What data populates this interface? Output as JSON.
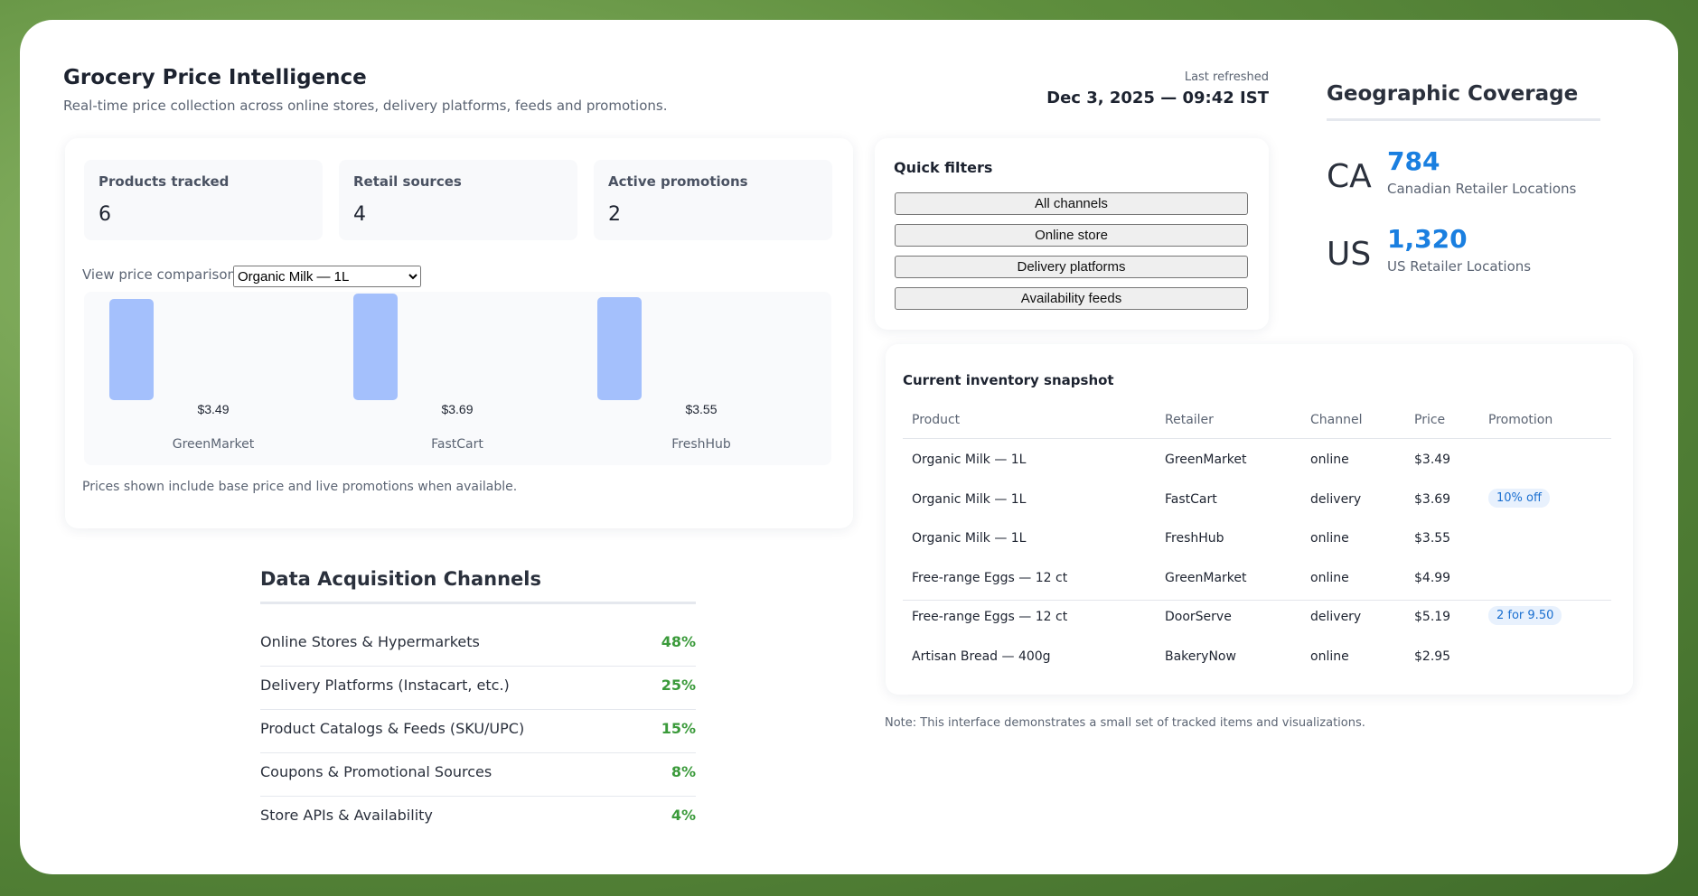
{
  "header": {
    "title": "Grocery Price Intelligence",
    "subtitle": "Real-time price collection across online stores, delivery platforms, feeds and promotions.",
    "refresh_label": "Last refreshed",
    "refresh_time": "Dec 3, 2025 — 09:42 IST"
  },
  "stats": [
    {
      "label": "Products tracked",
      "value": 6
    },
    {
      "label": "Retail sources",
      "value": 4
    },
    {
      "label": "Active promotions",
      "value": 2
    }
  ],
  "price_comparison": {
    "label": "View price comparison:",
    "selected": "Organic Milk — 1L",
    "bars": [
      {
        "retailer": "GreenMarket",
        "value": 3.49,
        "label": "$3.49"
      },
      {
        "retailer": "FastCart",
        "value": 3.69,
        "label": "$3.69"
      },
      {
        "retailer": "FreshHub",
        "value": 3.55,
        "label": "$3.55"
      }
    ],
    "note": "Prices shown include base price and live promotions when available."
  },
  "quick_filters": {
    "title": "Quick filters",
    "buttons": [
      "All channels",
      "Online store",
      "Delivery platforms",
      "Availability feeds"
    ]
  },
  "geographic": {
    "title": "Geographic Coverage",
    "regions": [
      {
        "code": "CA",
        "count": "784",
        "caption": "Canadian Retailer Locations"
      },
      {
        "code": "US",
        "count": "1,320",
        "caption": "US Retailer Locations"
      }
    ]
  },
  "inventory": {
    "title": "Current inventory snapshot",
    "columns": [
      "Product",
      "Retailer",
      "Channel",
      "Price",
      "Promotion"
    ],
    "rows": [
      [
        "Organic Milk — 1L",
        "GreenMarket",
        "online",
        "$3.49"
      ],
      [
        "Organic Milk — 1L",
        "FastCart",
        "delivery",
        "$3.69",
        "10% off"
      ],
      [
        "Organic Milk — 1L",
        "FreshHub",
        "online",
        "$3.55"
      ],
      [
        "Free-range Eggs — 12 ct",
        "GreenMarket",
        "online",
        "$4.99"
      ],
      [
        "Free-range Eggs — 12 ct",
        "DoorServe",
        "delivery",
        "$5.19",
        "2 for 9.50"
      ],
      [
        "Artisan Bread — 400g",
        "BakeryNow",
        "online",
        "$2.95"
      ]
    ],
    "note": "Note: This interface demonstrates a small set of tracked items and visualizations."
  },
  "channels": {
    "title": "Data Acquisition Channels",
    "items": [
      {
        "name": "Online Stores & Hypermarkets",
        "share": "48%"
      },
      {
        "name": "Delivery Platforms (Instacart, etc.)",
        "share": "25%"
      },
      {
        "name": "Product Catalogs & Feeds (SKU/UPC)",
        "share": "15%"
      },
      {
        "name": "Coupons & Promotional Sources",
        "share": "8%"
      },
      {
        "name": "Store APIs & Availability",
        "share": "4%"
      }
    ]
  }
}
